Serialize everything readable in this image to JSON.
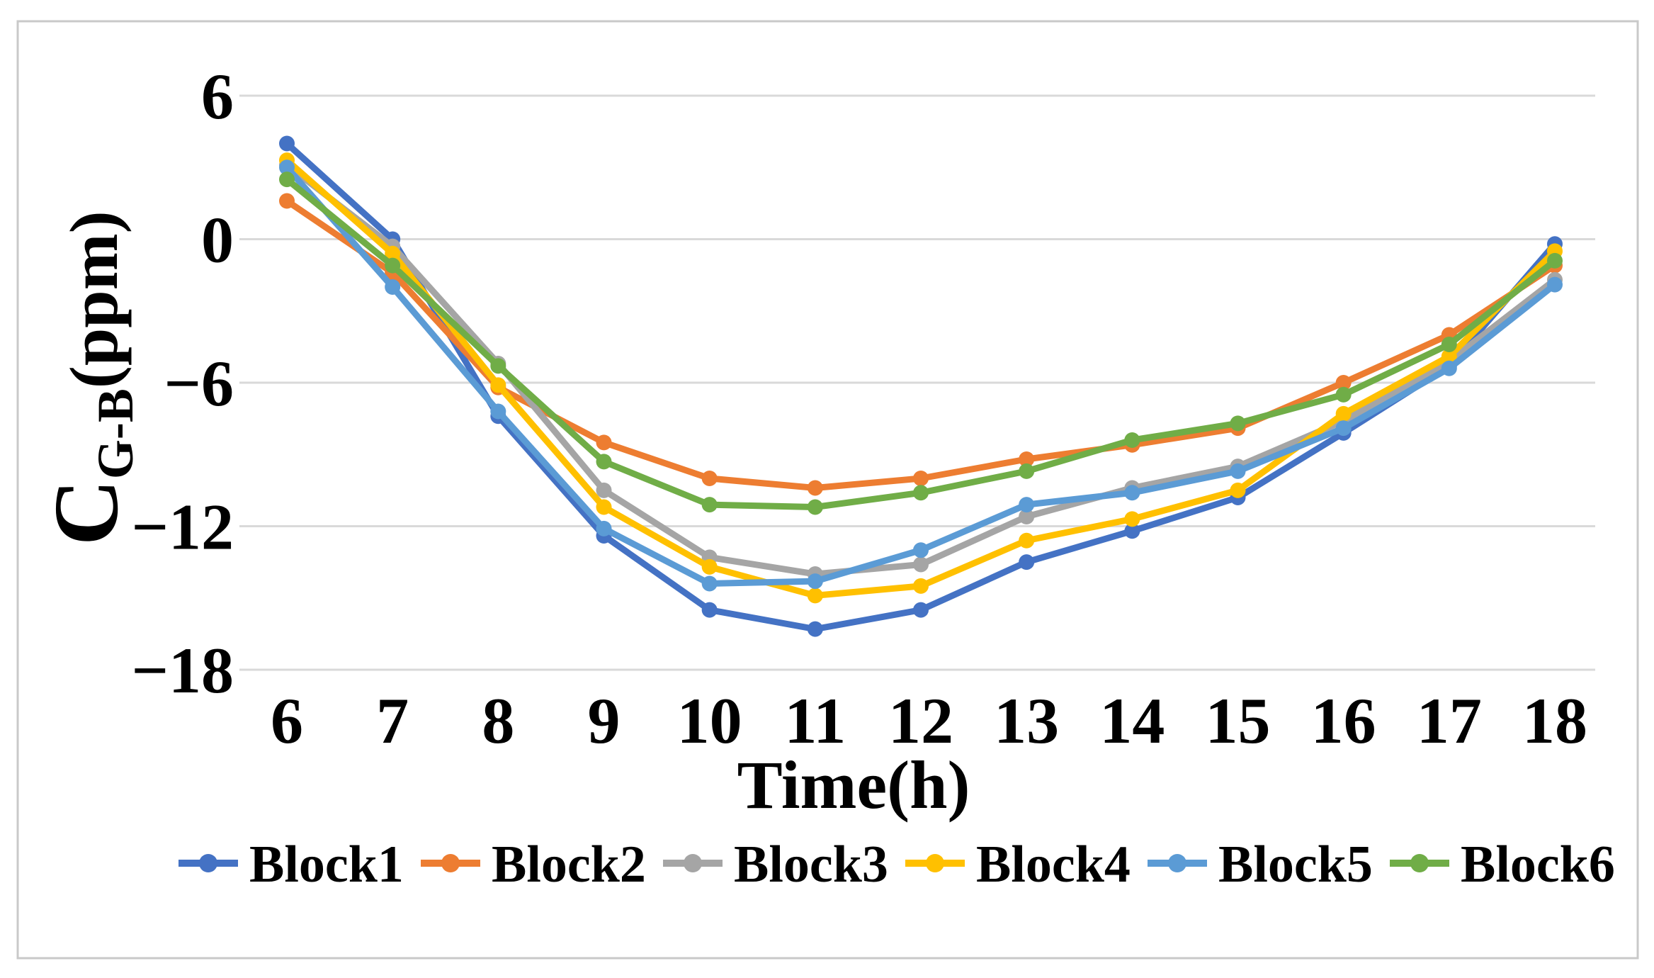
{
  "figure": {
    "description": "Line chart of colour-difference concentration C G-B (ppm) versus time of day for six blocks",
    "background": "#FFFFFF",
    "frame_color": "#C9C9C9"
  },
  "chart_data": {
    "type": "line",
    "title": "",
    "xlabel": "Time(h)",
    "ylabel": {
      "main": "C",
      "sub": "G-B",
      "unit": "(ppm)"
    },
    "x": [
      6,
      7,
      8,
      9,
      10,
      11,
      12,
      13,
      14,
      15,
      16,
      17,
      18
    ],
    "x_tick_labels": [
      "6",
      "7",
      "8",
      "9",
      "10",
      "11",
      "12",
      "13",
      "14",
      "15",
      "16",
      "17",
      "18"
    ],
    "y_ticks": [
      6,
      0,
      -6,
      -12,
      -18
    ],
    "y_tick_labels": [
      "6",
      "0",
      "−6",
      "−12",
      "−18"
    ],
    "ylim": [
      -18,
      6
    ],
    "xlim": [
      6,
      18
    ],
    "grid": "horizontal",
    "gridline_color": "#D9D9D9",
    "text_color": "#000000",
    "legend_position": "bottom",
    "marker": "circle",
    "series": [
      {
        "name": "Block1",
        "color": "#4472C4",
        "values": [
          4.0,
          0.0,
          -7.4,
          -12.4,
          -15.5,
          -16.3,
          -15.5,
          -13.5,
          -12.2,
          -10.8,
          -8.1,
          -5.3,
          -0.2
        ]
      },
      {
        "name": "Block2",
        "color": "#ED7D31",
        "values": [
          1.6,
          -1.4,
          -6.2,
          -8.5,
          -10.0,
          -10.4,
          -10.0,
          -9.2,
          -8.6,
          -7.9,
          -6.0,
          -4.0,
          -1.1
        ]
      },
      {
        "name": "Block3",
        "color": "#A5A5A5",
        "values": [
          3.1,
          -0.3,
          -5.2,
          -10.5,
          -13.3,
          -14.0,
          -13.6,
          -11.6,
          -10.4,
          -9.5,
          -7.6,
          -5.1,
          -1.7
        ]
      },
      {
        "name": "Block4",
        "color": "#FFC000",
        "values": [
          3.3,
          -0.6,
          -6.1,
          -11.2,
          -13.7,
          -14.9,
          -14.5,
          -12.6,
          -11.7,
          -10.5,
          -7.3,
          -4.9,
          -0.5
        ]
      },
      {
        "name": "Block5",
        "color": "#5B9BD5",
        "values": [
          3.0,
          -2.0,
          -7.2,
          -12.1,
          -14.4,
          -14.3,
          -13.0,
          -11.1,
          -10.6,
          -9.7,
          -7.9,
          -5.4,
          -1.9
        ]
      },
      {
        "name": "Block6",
        "color": "#70AD47",
        "values": [
          2.5,
          -1.1,
          -5.3,
          -9.3,
          -11.1,
          -11.2,
          -10.6,
          -9.7,
          -8.4,
          -7.7,
          -6.5,
          -4.4,
          -0.9
        ]
      }
    ]
  }
}
